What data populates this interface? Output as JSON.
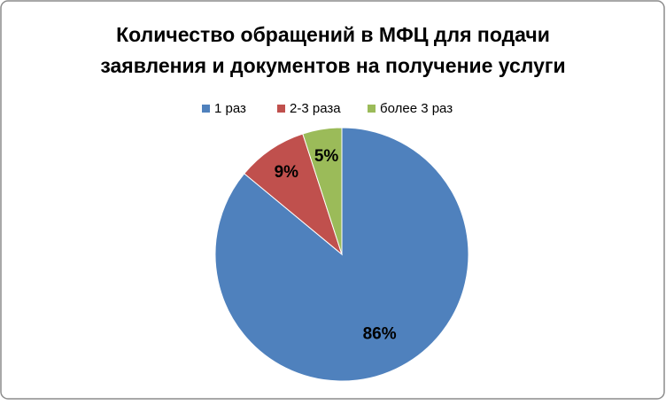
{
  "chart_data": {
    "type": "pie",
    "title": [
      "Количество обращений в МФЦ для подачи",
      "заявления  и документов на получение услуги"
    ],
    "categories": [
      "1 раз",
      "2-3 раза",
      "более 3 раз"
    ],
    "values": [
      86,
      9,
      5
    ],
    "value_labels": [
      "86%",
      "9%",
      "5%"
    ],
    "colors": [
      "#4f81bd",
      "#c0504d",
      "#9bbb59"
    ],
    "legend": "top"
  }
}
